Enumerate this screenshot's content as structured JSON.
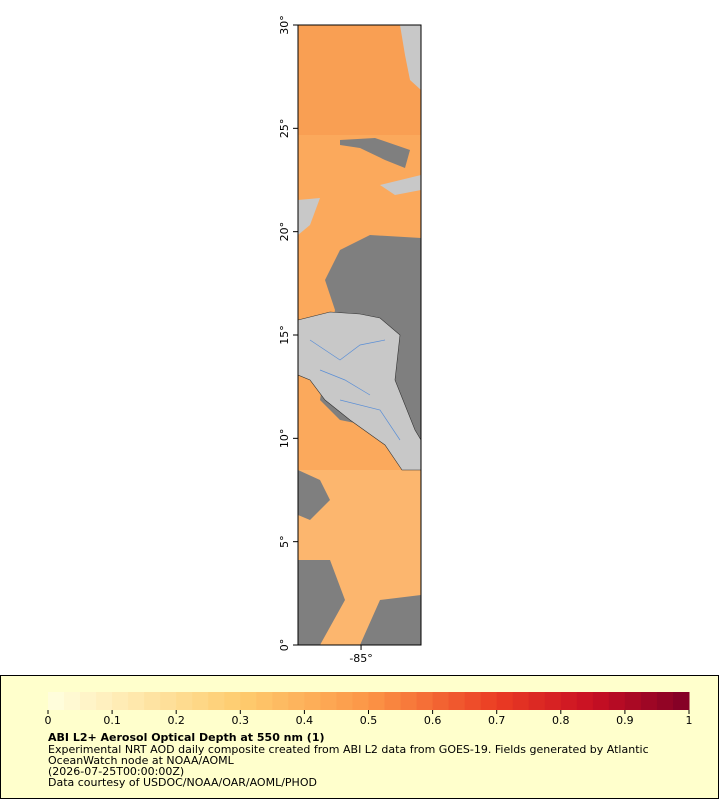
{
  "map": {
    "latlim": [
      0,
      30
    ],
    "lonlim": [
      -88.05,
      -82.1
    ],
    "lat_ticks": [
      {
        "value": 0,
        "label": "0°"
      },
      {
        "value": 5,
        "label": "5°"
      },
      {
        "value": 10,
        "label": "10°"
      },
      {
        "value": 15,
        "label": "15°"
      },
      {
        "value": 20,
        "label": "20°"
      },
      {
        "value": 25,
        "label": "25°"
      },
      {
        "value": 30,
        "label": "30°"
      }
    ],
    "lon_ticks": [
      {
        "value": -85,
        "label": "-85°"
      }
    ]
  },
  "legend": {
    "colorbar_range": [
      0,
      1
    ],
    "colorbar_ticks": [
      0,
      0.1,
      0.2,
      0.3,
      0.4,
      0.5,
      0.6,
      0.7,
      0.8,
      0.9,
      1
    ],
    "title": "ABI L2+ Aerosol Optical Depth at 550 nm (1)",
    "lines": [
      "Experimental NRT AOD daily composite created from ABI L2 data from GOES-19. Fields generated by Atlantic",
      "OceanWatch node at NOAA/AOML",
      "(2026-07-25T00:00:00Z)",
      "Data courtesy of USDOC/NOAA/OAR/AOML/PHOD"
    ]
  }
}
